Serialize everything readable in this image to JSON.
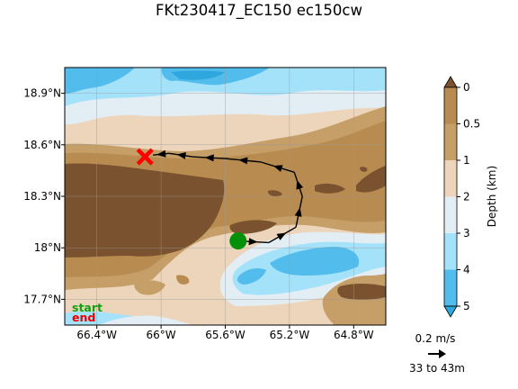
{
  "title": "FKt230417_EC150 ec150cw",
  "map": {
    "lat_ticks": [
      "18.9°N",
      "18.6°N",
      "18.3°N",
      "18°N",
      "17.7°N"
    ],
    "lon_ticks": [
      "66.4°W",
      "66°W",
      "65.6°W",
      "65.2°W",
      "64.8°W"
    ],
    "lat_range": [
      17.55,
      19.05
    ],
    "lon_range": [
      -66.6,
      -64.6
    ],
    "grid": true
  },
  "colorbar": {
    "label": "Depth (km)",
    "ticks": [
      "0",
      "0.5",
      "1",
      "2",
      "3",
      "4",
      "5"
    ],
    "colors": [
      "#7a5230",
      "#b88c50",
      "#c69e68",
      "#ecd5bb",
      "#e2edf4",
      "#a4e2fa",
      "#52bcec",
      "#2ea6de"
    ]
  },
  "legend": {
    "start_label": "start",
    "end_label": "end",
    "start_color": "#00900a",
    "end_color": "#ff0000"
  },
  "scale": {
    "speed_label": "0.2 m/s",
    "depth_label": "33 to 43m"
  },
  "chart_data": {
    "type": "map",
    "track": {
      "start": {
        "lon": -65.52,
        "lat": 18.04
      },
      "end": {
        "lon": -66.1,
        "lat": 18.53
      },
      "points": [
        {
          "lon": -65.52,
          "lat": 18.04
        },
        {
          "lon": -65.33,
          "lat": 18.03
        },
        {
          "lon": -65.16,
          "lat": 18.12
        },
        {
          "lon": -65.12,
          "lat": 18.3
        },
        {
          "lon": -65.17,
          "lat": 18.44
        },
        {
          "lon": -65.38,
          "lat": 18.5
        },
        {
          "lon": -65.6,
          "lat": 18.52
        },
        {
          "lon": -65.8,
          "lat": 18.53
        },
        {
          "lon": -65.95,
          "lat": 18.55
        },
        {
          "lon": -66.05,
          "lat": 18.54
        }
      ]
    }
  }
}
